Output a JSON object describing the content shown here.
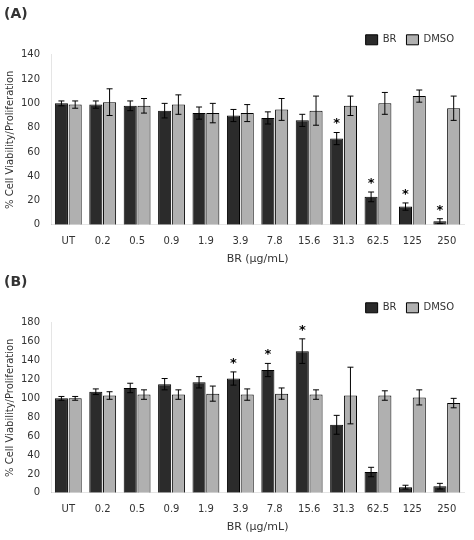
{
  "chart_data": [
    {
      "type": "bar",
      "title": "(A)",
      "categories": [
        "UT",
        "0.2",
        "0.5",
        "0.9",
        "1.9",
        "3.9",
        "7.8",
        "15.6",
        "31.3",
        "62.5",
        "125",
        "250"
      ],
      "series": [
        {
          "name": "BR",
          "color": "#2b2b2b",
          "values": [
            100,
            99,
            98,
            94,
            92,
            90,
            88,
            86,
            71,
            23,
            15,
            3
          ],
          "errors": [
            2,
            3,
            4,
            6,
            5,
            5,
            5,
            5,
            5,
            4,
            3,
            2
          ]
        },
        {
          "name": "DMSO",
          "color": "#b0b0b0",
          "values": [
            99,
            101,
            98,
            99,
            92,
            92,
            95,
            94,
            98,
            100,
            106,
            96
          ],
          "errors": [
            3,
            11,
            6,
            8,
            8,
            7,
            9,
            12,
            8,
            9,
            5,
            10
          ]
        }
      ],
      "annotations": [
        {
          "text": "*",
          "series": "BR",
          "category": "31.3"
        },
        {
          "text": "*",
          "series": "BR",
          "category": "62.5"
        },
        {
          "text": "*",
          "series": "BR",
          "category": "125"
        },
        {
          "text": "*",
          "series": "BR",
          "category": "250"
        }
      ],
      "xlabel": "BR (μg/mL)",
      "ylabel": "% Cell Viability/Proliferation",
      "ylim": [
        0,
        140
      ],
      "yticks": [
        0,
        20,
        40,
        60,
        80,
        100,
        120,
        140
      ],
      "grid": false,
      "legend": "upper right"
    },
    {
      "type": "bar",
      "title": "(B)",
      "categories": [
        "UT",
        "0.2",
        "0.5",
        "0.9",
        "1.9",
        "3.9",
        "7.8",
        "15.6",
        "31.3",
        "62.5",
        "125",
        "250"
      ],
      "series": [
        {
          "name": "BR",
          "color": "#2b2b2b",
          "values": [
            100,
            107,
            111,
            115,
            117,
            121,
            130,
            150,
            72,
            22,
            6,
            7
          ],
          "errors": [
            2,
            3,
            5,
            6,
            6,
            7,
            7,
            13,
            10,
            5,
            2,
            3
          ]
        },
        {
          "name": "DMSO",
          "color": "#b0b0b0",
          "values": [
            100,
            103,
            104,
            104,
            105,
            104,
            105,
            104,
            103,
            103,
            101,
            95
          ],
          "errors": [
            2,
            4,
            5,
            5,
            8,
            6,
            6,
            5,
            30,
            5,
            8,
            5
          ]
        }
      ],
      "annotations": [
        {
          "text": "*",
          "series": "BR",
          "category": "3.9"
        },
        {
          "text": "*",
          "series": "BR",
          "category": "7.8"
        },
        {
          "text": "*",
          "series": "BR",
          "category": "15.6"
        }
      ],
      "xlabel": "BR (μg/mL)",
      "ylabel": "% Cell Viability/Proliferation",
      "ylim": [
        0,
        180
      ],
      "yticks": [
        0,
        20,
        40,
        60,
        80,
        100,
        120,
        140,
        160,
        180
      ],
      "grid": false,
      "legend": "upper right"
    }
  ]
}
